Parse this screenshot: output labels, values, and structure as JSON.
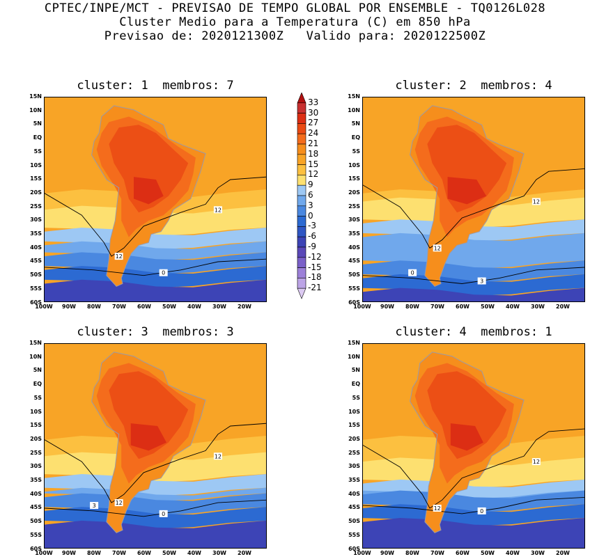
{
  "header": {
    "line1": "CPTEC/INPE/MCT - PREVISAO DE TEMPO GLOBAL POR ENSEMBLE - TQ0126L028",
    "line2": "Cluster Medio para a Temperatura (C) em 850 hPa",
    "line3": "Previsao de: 2020121300Z   Valido para: 2020122500Z"
  },
  "panels": [
    {
      "title": "cluster: 1  membros: 7",
      "contour_labels": [
        "12",
        "12",
        "0"
      ]
    },
    {
      "title": "cluster: 2  membros: 4",
      "contour_labels": [
        "12",
        "12",
        "3",
        "0"
      ]
    },
    {
      "title": "cluster: 3  membros: 3",
      "contour_labels": [
        "12",
        "12",
        "0",
        "3"
      ]
    },
    {
      "title": "cluster: 4  membros: 1",
      "contour_labels": [
        "12",
        "12",
        "0"
      ]
    }
  ],
  "axes": {
    "lat_ticks": [
      "15N",
      "10N",
      "5N",
      "EQ",
      "5S",
      "10S",
      "15S",
      "20S",
      "25S",
      "30S",
      "35S",
      "40S",
      "45S",
      "50S",
      "55S",
      "60S"
    ],
    "lon_ticks": [
      "100W",
      "90W",
      "80W",
      "70W",
      "60W",
      "50W",
      "40W",
      "30W",
      "20W"
    ]
  },
  "colorbar": {
    "levels": [
      "33",
      "30",
      "27",
      "24",
      "21",
      "18",
      "15",
      "12",
      "9",
      "6",
      "3",
      "0",
      "-3",
      "-6",
      "-9",
      "-12",
      "-15",
      "-18",
      "-21"
    ],
    "colors": [
      "#b01010",
      "#c83030",
      "#dc2e14",
      "#ea4a14",
      "#f46c1c",
      "#f68e1c",
      "#f8a426",
      "#fcc040",
      "#fde070",
      "#9dc8f4",
      "#70a8ec",
      "#4a88e0",
      "#2c6ad2",
      "#2f56c4",
      "#3d44b6",
      "#5a48b8",
      "#7a60c8",
      "#9c80d8",
      "#bca4e6",
      "#dccaf2"
    ]
  }
}
